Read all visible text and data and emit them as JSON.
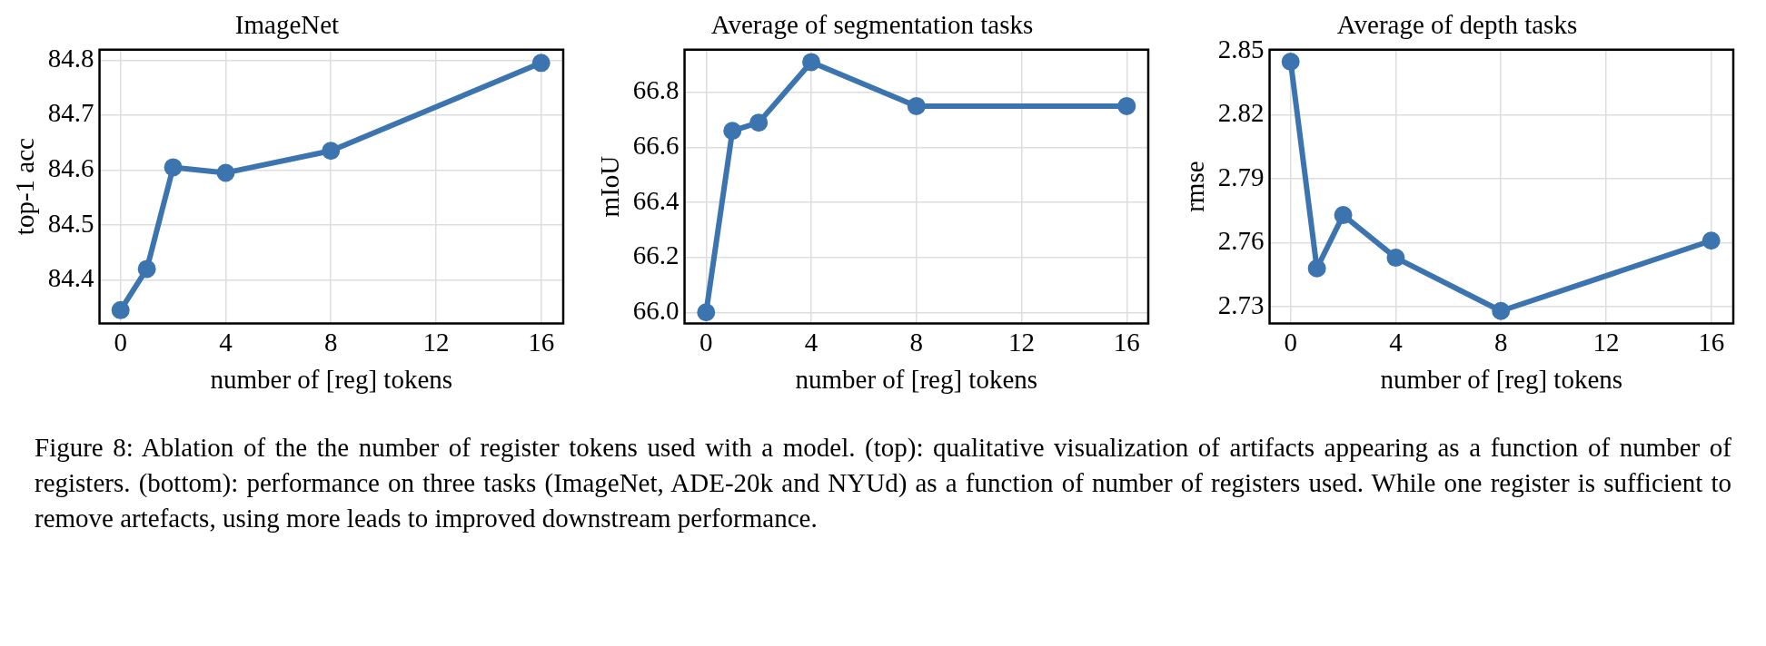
{
  "chart_data": [
    {
      "type": "line",
      "title": "ImageNet",
      "xlabel": "number of [reg] tokens",
      "ylabel": "top-1 acc",
      "x": [
        0,
        1,
        2,
        4,
        8,
        16
      ],
      "series": [
        {
          "color": "#3c74b0",
          "values": [
            84.345,
            84.42,
            84.605,
            84.595,
            84.635,
            84.795
          ]
        }
      ],
      "xlim": [
        -0.8,
        16.84
      ],
      "xticks": [
        0,
        4,
        8,
        12,
        16
      ],
      "ylim": [
        84.321,
        84.819
      ],
      "yticks": [
        84.4,
        84.5,
        84.6,
        84.7,
        84.8
      ],
      "grid": true,
      "legend": false,
      "marker": "circle",
      "line_style": "solid",
      "annotations": [
        "Figure 8: Ablation of the the number of register tokens used with a model. (top): qualitative visualization of artifacts appearing as a function of number of registers. (bottom): performance on three tasks (ImageNet, ADE-20k and NYUd) as a function of number of registers used. While one register is sufficient to remove artefacts, using more leads to improved downstream performance."
      ]
    },
    {
      "type": "line",
      "title": "Average of segmentation tasks",
      "xlabel": "number of [reg] tokens",
      "ylabel": "mIoU",
      "x": [
        0,
        1,
        2,
        4,
        8,
        16
      ],
      "series": [
        {
          "color": "#3c74b0",
          "values": [
            66.0,
            66.66,
            66.69,
            66.91,
            66.75,
            66.75
          ]
        }
      ],
      "xlim": [
        -0.82,
        16.82
      ],
      "xticks": [
        0,
        4,
        8,
        12,
        16
      ],
      "ylim": [
        65.96,
        66.955
      ],
      "yticks": [
        {
          "value": 66.0,
          "label": "66.0"
        },
        {
          "value": 66.2,
          "label": "66.2"
        },
        {
          "value": 66.4,
          "label": "66.4"
        },
        {
          "value": 66.6,
          "label": "66.6"
        },
        {
          "value": 66.8,
          "label": "66.8"
        }
      ],
      "grid": true,
      "legend": false,
      "marker": "circle",
      "line_style": "solid"
    },
    {
      "type": "line",
      "title": "Average of depth tasks",
      "xlabel": "number of [reg] tokens",
      "ylabel": "rmse",
      "x": [
        0,
        1,
        2,
        4,
        8,
        16
      ],
      "series": [
        {
          "color": "#3c74b0",
          "values": [
            2.845,
            2.748,
            2.773,
            2.753,
            2.728,
            2.761
          ]
        }
      ],
      "xlim": [
        -0.8,
        16.84
      ],
      "xticks": [
        0,
        4,
        8,
        12,
        16
      ],
      "ylim": [
        2.7222,
        2.8506
      ],
      "yticks": [
        2.73,
        2.76,
        2.79,
        2.82,
        2.85
      ],
      "grid": true,
      "legend": false,
      "marker": "circle",
      "line_style": "solid"
    }
  ]
}
